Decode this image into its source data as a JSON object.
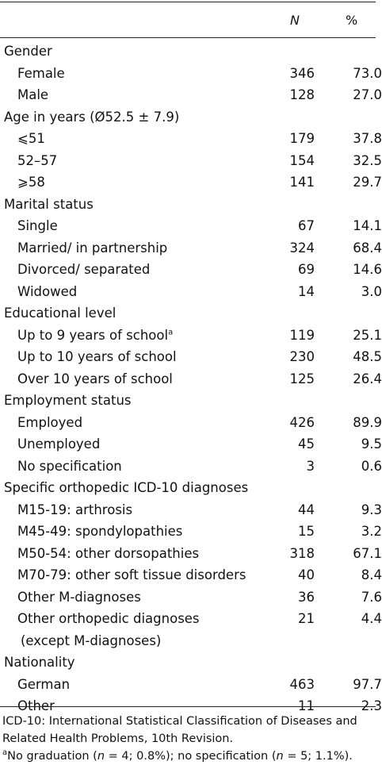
{
  "header": {
    "n": "N",
    "pct": "%"
  },
  "sections": [
    {
      "label": "Gender",
      "rows": [
        [
          "Female",
          "346",
          "73.0"
        ],
        [
          "Male",
          "128",
          "27.0"
        ]
      ]
    },
    {
      "label": "Age in years (Ø52.5 ± 7.9)",
      "rows": [
        [
          "⩽51",
          "179",
          "37.8"
        ],
        [
          "52–57",
          "154",
          "32.5"
        ],
        [
          "⩾58",
          "141",
          "29.7"
        ]
      ]
    },
    {
      "label": "Marital status",
      "rows": [
        [
          "Single",
          "67",
          "14.1"
        ],
        [
          "Married/ in partnership",
          "324",
          "68.4"
        ],
        [
          "Divorced/ separated",
          "69",
          "14.6"
        ],
        [
          "Widowed",
          "14",
          "3.0"
        ]
      ]
    },
    {
      "label": "Educational level",
      "rows": [
        [
          "Up to 9 years of school",
          "119",
          "25.1",
          "a"
        ],
        [
          "Up to 10 years of school",
          "230",
          "48.5"
        ],
        [
          "Over 10 years of school",
          "125",
          "26.4"
        ]
      ]
    },
    {
      "label": "Employment status",
      "rows": [
        [
          "Employed",
          "426",
          "89.9"
        ],
        [
          "Unemployed",
          "45",
          "9.5"
        ],
        [
          "No specification",
          "3",
          "0.6"
        ]
      ]
    },
    {
      "label": "Specific orthopedic ICD-10 diagnoses",
      "rows": [
        [
          "M15-19: arthrosis",
          "44",
          "9.3"
        ],
        [
          "M45-49: spondylopathies",
          "15",
          "3.2"
        ],
        [
          "M50-54: other dorsopathies",
          "318",
          "67.1"
        ],
        [
          "M70-79: other soft tissue disorders",
          "40",
          "8.4"
        ],
        [
          "Other M-diagnoses",
          "36",
          "7.6"
        ],
        [
          "Other orthopedic diagnoses",
          "21",
          "4.4",
          "(except M-diagnoses)"
        ]
      ]
    },
    {
      "label": "Nationality",
      "rows": [
        [
          "German",
          "463",
          "97.7"
        ],
        [
          "Other",
          "11",
          "2.3"
        ]
      ]
    }
  ],
  "footnotes": {
    "abbrev": "ICD-10: International Statistical Classification of Diseases and Related Health Problems, 10th Revision.",
    "mark": "a",
    "parts": [
      "No graduation (",
      "n",
      " = 4; 0.8%); no specification (",
      "n",
      " = 5; 1.1%)."
    ]
  }
}
